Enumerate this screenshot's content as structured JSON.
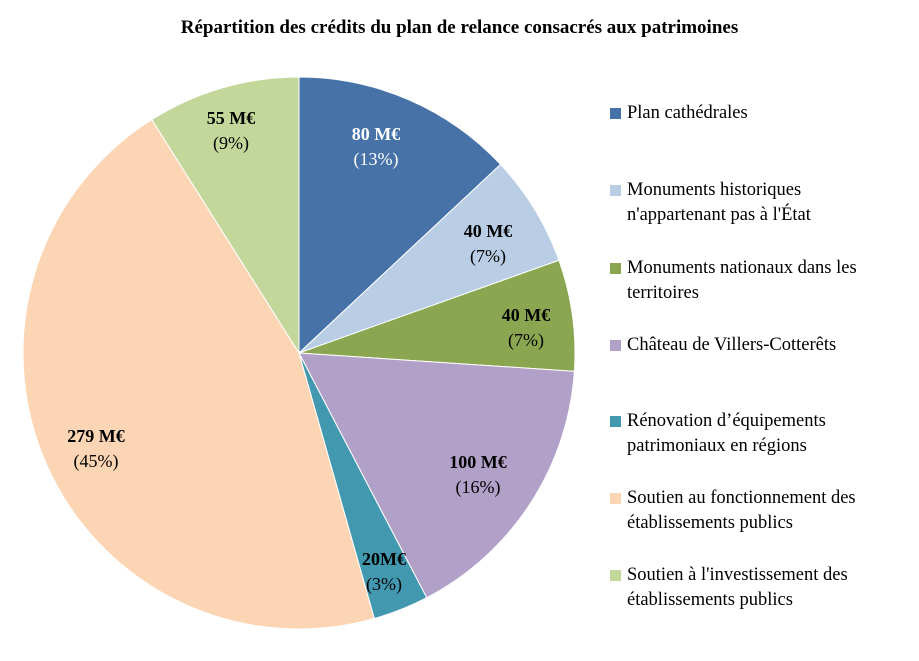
{
  "chart_data": {
    "type": "pie",
    "title": "Répartition des crédits du plan de relance consacrés aux patrimoines",
    "legend_position": "right",
    "slices": [
      {
        "name": "Plan cathédrales",
        "legend": "Plan cathédrales",
        "value": 80,
        "value_label": "80 M€",
        "percent_label": "(13%)",
        "color": "#4672A8",
        "label_color": "#ffffff"
      },
      {
        "name": "Monuments historiques n'appartenant pas à l'État",
        "legend": "Monuments historiques\nn'appartenant pas à l'État",
        "value": 40,
        "value_label": "40 M€",
        "percent_label": "(7%)",
        "color": "#B9CDE5",
        "label_color": "#000000"
      },
      {
        "name": "Monuments nationaux dans les territoires",
        "legend": "Monuments nationaux dans les\nterritoires",
        "value": 40,
        "value_label": "40 M€",
        "percent_label": "(7%)",
        "color": "#8BA650",
        "label_color": "#000000"
      },
      {
        "name": "Château de Villers-Cotterêts",
        "legend": "Château de Villers-Cotterêts",
        "value": 100,
        "value_label": "100 M€",
        "percent_label": "(16%)",
        "color": "#B1A0C7",
        "label_color": "#000000"
      },
      {
        "name": "Rénovation d’équipements patrimoniaux en régions",
        "legend": "Rénovation d’équipements\npatrimoniaux en régions",
        "value": 20,
        "value_label": "20M€",
        "percent_label": "(3%)",
        "color": "#4298AF",
        "label_color": "#000000"
      },
      {
        "name": "Soutien au fonctionnement des établissements publics",
        "legend": "Soutien au fonctionnement des\nétablissements publics",
        "value": 279,
        "value_label": "279 M€",
        "percent_label": "(45%)",
        "color": "#FCD5B4",
        "label_color": "#000000"
      },
      {
        "name": "Soutien à l'investissement des établissements publics",
        "legend": "Soutien à l'investissement des\nétablissements publics",
        "value": 55,
        "value_label": "55 M€",
        "percent_label": "(9%)",
        "color": "#C4D79B",
        "label_color": "#000000"
      }
    ]
  }
}
